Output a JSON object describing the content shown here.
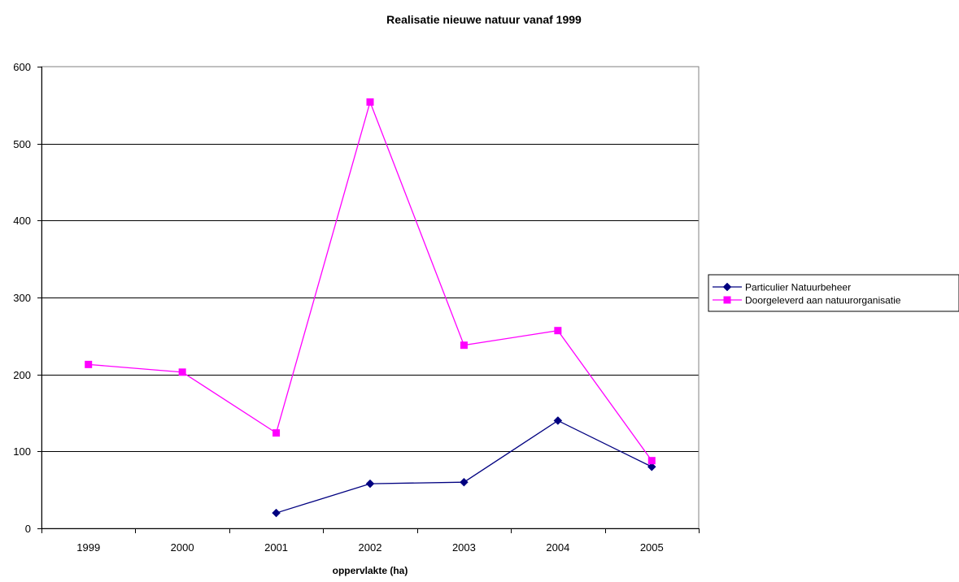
{
  "chart_data": {
    "type": "line",
    "title": "Realisatie nieuwe natuur vanaf 1999",
    "xlabel": "oppervlakte (ha)",
    "ylabel": "",
    "categories": [
      "1999",
      "2000",
      "2001",
      "2002",
      "2003",
      "2004",
      "2005"
    ],
    "ylim": [
      0,
      600
    ],
    "yticks": [
      0,
      100,
      200,
      300,
      400,
      500,
      600
    ],
    "grid": true,
    "legend_position": "right",
    "series": [
      {
        "name": "Particulier Natuurbeheer",
        "color": "#000080",
        "marker": "diamond",
        "values": [
          null,
          null,
          20,
          58,
          60,
          140,
          80
        ]
      },
      {
        "name": "Doorgeleverd aan natuurorganisatie",
        "color": "#ff00ff",
        "marker": "square",
        "values": [
          213,
          203,
          124,
          554,
          238,
          257,
          88
        ]
      }
    ]
  }
}
